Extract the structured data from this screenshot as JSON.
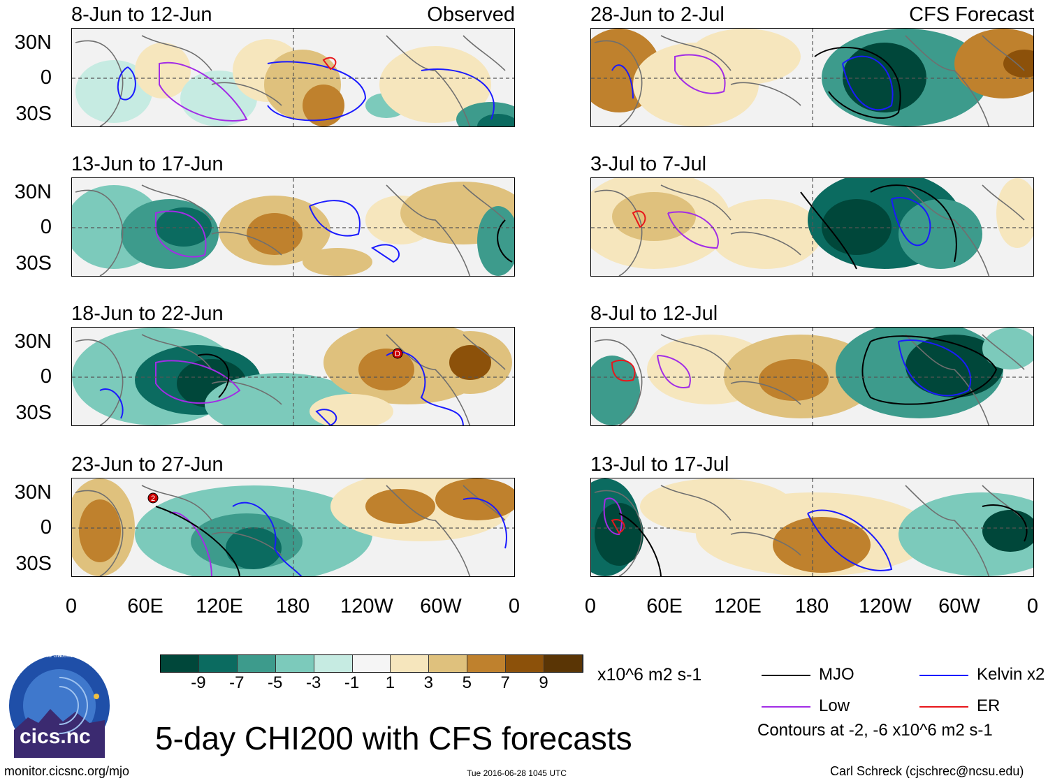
{
  "chart_data": {
    "type": "heatmap",
    "title": "5-day CHI200 with CFS forecasts",
    "units": "x10^6 m2 s-1",
    "observed_label": "Observed",
    "forecast_label": "CFS Forecast",
    "lat_ticks": [
      "30N",
      "0",
      "30S"
    ],
    "lon_ticks": [
      "0",
      "60E",
      "120E",
      "180",
      "120W",
      "60W",
      "0"
    ],
    "colorbar": {
      "ticks": [
        "-9",
        "-7",
        "-5",
        "-3",
        "-1",
        "1",
        "3",
        "5",
        "7",
        "9"
      ],
      "colors": [
        "#00473a",
        "#0b6b60",
        "#3d9b8c",
        "#7ccabb",
        "#c6ebe2",
        "#f5f5f5",
        "#f6e6bd",
        "#dfc17d",
        "#bf812d",
        "#8c510a",
        "#5a3505"
      ]
    },
    "contours_note": "Contours at -2, -6 x10^6 m2 s-1",
    "legend": [
      {
        "label": "MJO",
        "color": "#000000"
      },
      {
        "label": "Kelvin x2",
        "color": "#1a1aff"
      },
      {
        "label": "Low",
        "color": "#a22ce6"
      },
      {
        "label": "ER",
        "color": "#e8161b"
      }
    ],
    "panels": [
      {
        "period": "8-Jun to 12-Jun",
        "kind": "Observed"
      },
      {
        "period": "13-Jun to 17-Jun",
        "kind": "Observed"
      },
      {
        "period": "18-Jun to 22-Jun",
        "kind": "Observed",
        "marker": "D"
      },
      {
        "period": "23-Jun to 27-Jun",
        "kind": "Observed",
        "marker": "2"
      },
      {
        "period": "28-Jun to 2-Jul",
        "kind": "CFS Forecast"
      },
      {
        "period": "3-Jul to 7-Jul",
        "kind": "CFS Forecast"
      },
      {
        "period": "8-Jul to 12-Jul",
        "kind": "CFS Forecast"
      },
      {
        "period": "13-Jul to 17-Jul",
        "kind": "CFS Forecast"
      }
    ]
  },
  "logo": {
    "text": "cics.nc",
    "ring": "Cooperative Institute for Climate and Satellites"
  },
  "footer": {
    "url": "monitor.cicsnc.org/mjo",
    "timestamp": "Tue 2016-06-28 1045 UTC",
    "author": "Carl Schreck (cjschrec@ncsu.edu)"
  }
}
